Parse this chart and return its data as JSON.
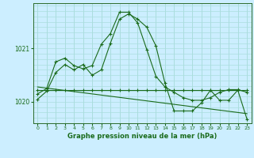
{
  "title": "Graphe pression niveau de la mer (hPa)",
  "background_color": "#cceeff",
  "grid_color": "#aadddd",
  "line_color": "#1a6b1a",
  "xlim": [
    -0.5,
    23.5
  ],
  "ylim": [
    1019.6,
    1021.85
  ],
  "yticks": [
    1020,
    1021
  ],
  "xticks": [
    0,
    1,
    2,
    3,
    4,
    5,
    6,
    7,
    8,
    9,
    10,
    11,
    12,
    13,
    14,
    15,
    16,
    17,
    18,
    19,
    20,
    21,
    22,
    23
  ],
  "series": [
    {
      "x": [
        0,
        1,
        2,
        3,
        4,
        5,
        6,
        7,
        8,
        9,
        10,
        11,
        12,
        13,
        14,
        15,
        16,
        17,
        18,
        19,
        20,
        21,
        22,
        23
      ],
      "y": [
        1020.05,
        1020.2,
        1020.55,
        1020.7,
        1020.6,
        1020.7,
        1020.5,
        1020.6,
        1021.1,
        1021.55,
        1021.65,
        1021.55,
        1021.4,
        1021.05,
        1020.35,
        1019.83,
        1019.83,
        1019.83,
        1019.98,
        1020.22,
        1020.03,
        1020.03,
        1020.22,
        1019.68
      ],
      "marker": true
    },
    {
      "x": [
        0,
        1,
        2,
        3,
        4,
        5,
        6,
        7,
        8,
        9,
        10,
        11,
        12,
        13,
        14,
        15,
        16,
        17,
        18,
        19,
        20,
        21,
        22,
        23
      ],
      "y": [
        1020.15,
        1020.25,
        1020.75,
        1020.82,
        1020.68,
        1020.62,
        1020.68,
        1021.08,
        1021.28,
        1021.68,
        1021.68,
        1021.48,
        1020.98,
        1020.48,
        1020.28,
        1020.18,
        1020.08,
        1020.03,
        1020.03,
        1020.08,
        1020.18,
        1020.23,
        1020.23,
        1020.18
      ],
      "marker": true
    },
    {
      "x": [
        0,
        1,
        2,
        3,
        4,
        5,
        6,
        7,
        8,
        9,
        10,
        11,
        12,
        13,
        14,
        15,
        16,
        17,
        18,
        19,
        20,
        21,
        22,
        23
      ],
      "y": [
        1020.22,
        1020.22,
        1020.22,
        1020.22,
        1020.22,
        1020.22,
        1020.22,
        1020.22,
        1020.22,
        1020.22,
        1020.22,
        1020.22,
        1020.22,
        1020.22,
        1020.22,
        1020.22,
        1020.22,
        1020.22,
        1020.22,
        1020.22,
        1020.22,
        1020.22,
        1020.22,
        1020.22
      ],
      "marker": true
    },
    {
      "x": [
        0,
        23
      ],
      "y": [
        1020.28,
        1019.78
      ],
      "marker": false
    }
  ]
}
